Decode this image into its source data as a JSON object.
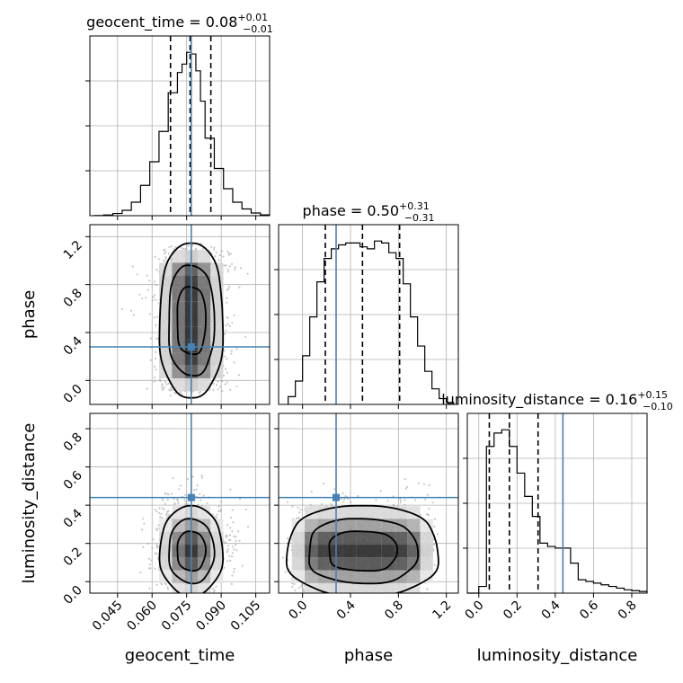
{
  "chart_data": [
    {
      "type": "histogram",
      "panel": "geocent_time-marginal",
      "title": {
        "param": "geocent_time",
        "median": "0.08",
        "plus": "+0.01",
        "minus": "−0.01"
      },
      "xlim": [
        0.033,
        0.111
      ],
      "bins": [
        0.035,
        0.039,
        0.043,
        0.047,
        0.051,
        0.055,
        0.059,
        0.063,
        0.067,
        0.071,
        0.073,
        0.075,
        0.077,
        0.079,
        0.081,
        0.083,
        0.087,
        0.091,
        0.095,
        0.099,
        0.103,
        0.107,
        0.111
      ],
      "counts": [
        0.1,
        0.4,
        1.3,
        3.2,
        8,
        18,
        32,
        50,
        73,
        85,
        90,
        97,
        96,
        86,
        68,
        46,
        28,
        16,
        8,
        4,
        1.6,
        0.5
      ],
      "quantiles": [
        0.068,
        0.0765,
        0.0855
      ],
      "truth": 0.077,
      "grid": true
    },
    {
      "type": "histogram",
      "panel": "phase-marginal",
      "title": {
        "param": "phase",
        "median": "0.50",
        "plus": "+0.31",
        "minus": "−0.31"
      },
      "xlim": [
        -0.2,
        1.3
      ],
      "bins": [
        -0.12,
        -0.06,
        0.0,
        0.06,
        0.12,
        0.18,
        0.24,
        0.3,
        0.36,
        0.42,
        0.48,
        0.54,
        0.6,
        0.66,
        0.72,
        0.78,
        0.84,
        0.9,
        0.96,
        1.02,
        1.08,
        1.14,
        1.2,
        1.26
      ],
      "counts": [
        4,
        12,
        25,
        45,
        63,
        75,
        80,
        82,
        83,
        83,
        81,
        80,
        84,
        83,
        78,
        75,
        62,
        45,
        30,
        17,
        8,
        3,
        1
      ],
      "quantiles": [
        0.19,
        0.5,
        0.81
      ],
      "truth": 0.28,
      "grid": true
    },
    {
      "type": "histogram",
      "panel": "luminosity_distance-marginal",
      "title": {
        "param": "luminosity_distance",
        "median": "0.16",
        "plus": "+0.15",
        "minus": "−0.10"
      },
      "xlim": [
        -0.06,
        0.88
      ],
      "bins": [
        -0.06,
        0.0,
        0.04,
        0.08,
        0.12,
        0.16,
        0.2,
        0.24,
        0.28,
        0.32,
        0.36,
        0.4,
        0.44,
        0.48,
        0.52,
        0.56,
        0.6,
        0.64,
        0.68,
        0.72,
        0.76,
        0.8,
        0.84,
        0.88
      ],
      "counts": [
        0,
        4,
        88,
        96,
        98,
        88,
        72,
        58,
        46,
        30,
        28,
        27,
        27,
        18,
        8,
        7,
        6,
        5,
        4,
        3,
        2,
        1.5,
        1
      ],
      "quantiles": [
        0.055,
        0.16,
        0.31
      ],
      "truth": 0.44,
      "grid": true
    },
    {
      "type": "scatter-density",
      "panel": "phase-vs-geocent_time",
      "x_param": "geocent_time",
      "y_param": "phase",
      "xlim": [
        0.033,
        0.111
      ],
      "ylim": [
        -0.2,
        1.3
      ],
      "x_center": 0.077,
      "x_sd": 0.0065,
      "y_center": 0.5,
      "y_half_range": 0.56,
      "truth": [
        0.077,
        0.28
      ],
      "grid": true
    },
    {
      "type": "scatter-density",
      "panel": "luminosity_distance-vs-geocent_time",
      "x_param": "geocent_time",
      "y_param": "luminosity_distance",
      "xlim": [
        0.033,
        0.111
      ],
      "ylim": [
        -0.06,
        0.88
      ],
      "x_center": 0.077,
      "x_sd": 0.0065,
      "y_center": 0.16,
      "y_sd": 0.11,
      "truth": [
        0.077,
        0.44
      ],
      "grid": true
    },
    {
      "type": "scatter-density",
      "panel": "luminosity_distance-vs-phase",
      "x_param": "phase",
      "y_param": "luminosity_distance",
      "xlim": [
        -0.2,
        1.3
      ],
      "ylim": [
        -0.06,
        0.88
      ],
      "x_center": 0.5,
      "x_half_range": 0.56,
      "y_center": 0.16,
      "y_sd": 0.11,
      "truth": [
        0.28,
        0.44
      ],
      "grid": true
    }
  ],
  "axes": {
    "geocent_time": {
      "label": "geocent_time",
      "ticks": [
        "0.045",
        "0.060",
        "0.075",
        "0.090",
        "0.105"
      ],
      "tick_values": [
        0.045,
        0.06,
        0.075,
        0.09,
        0.105
      ]
    },
    "phase": {
      "label": "phase",
      "ticks": [
        "0.0",
        "0.4",
        "0.8",
        "1.2"
      ],
      "tick_values": [
        0.0,
        0.4,
        0.8,
        1.2
      ]
    },
    "luminosity_distance": {
      "label": "luminosity_distance",
      "ticks": [
        "0.0",
        "0.2",
        "0.4",
        "0.6",
        "0.8"
      ],
      "tick_values": [
        0.0,
        0.2,
        0.4,
        0.6,
        0.8
      ]
    }
  },
  "colors": {
    "truth": "#4682b4",
    "histogram": "#000000",
    "grid": "#b0b0b0"
  }
}
